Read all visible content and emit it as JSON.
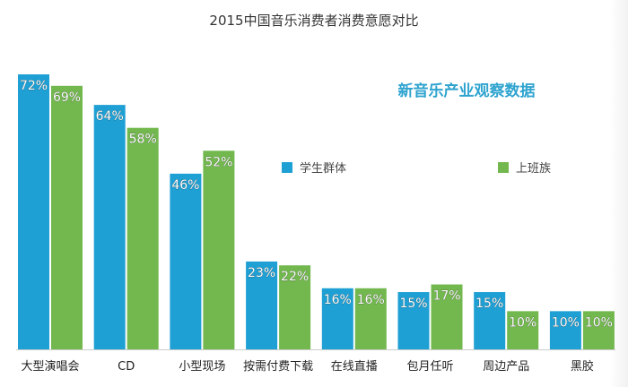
{
  "chart_data": {
    "type": "bar",
    "title": "2015中国音乐消费者消费意愿对比",
    "subtitle": "新音乐产业观察数据",
    "categories": [
      "大型演唱会",
      "CD",
      "小型现场",
      "按需付费下载",
      "在线直播",
      "包月任听",
      "周边产品",
      "黑胶"
    ],
    "series": [
      {
        "name": "学生群体",
        "color": "#1fa0d4",
        "values": [
          72,
          64,
          46,
          23,
          16,
          15,
          15,
          10
        ]
      },
      {
        "name": "上班族",
        "color": "#72b84e",
        "values": [
          69,
          58,
          52,
          22,
          16,
          17,
          10,
          10
        ]
      }
    ],
    "value_suffix": "%",
    "ylim": [
      0,
      72
    ],
    "grid": false,
    "legend_placement": "right"
  }
}
